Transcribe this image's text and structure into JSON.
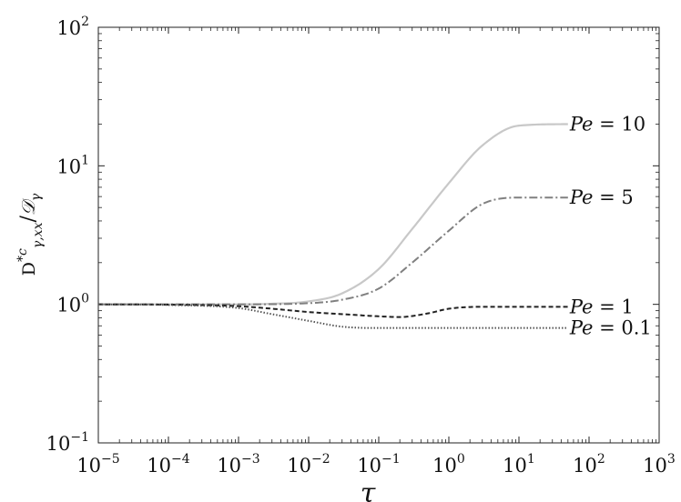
{
  "chart_data": {
    "type": "line",
    "x_scale": "log",
    "y_scale": "log",
    "xlim": [
      1e-05,
      1000
    ],
    "ylim": [
      0.1,
      100
    ],
    "xlabel": "τ",
    "ylabel": "D*c γ,xx / 𝒟γ",
    "grid": false,
    "x_ticks": [
      {
        "value": 1e-05,
        "base": "10",
        "exp": "−5"
      },
      {
        "value": 0.0001,
        "base": "10",
        "exp": "−4"
      },
      {
        "value": 0.001,
        "base": "10",
        "exp": "−3"
      },
      {
        "value": 0.01,
        "base": "10",
        "exp": "−2"
      },
      {
        "value": 0.1,
        "base": "10",
        "exp": "−1"
      },
      {
        "value": 1,
        "base": "10",
        "exp": "0"
      },
      {
        "value": 10,
        "base": "10",
        "exp": "1"
      },
      {
        "value": 100,
        "base": "10",
        "exp": "2"
      },
      {
        "value": 1000,
        "base": "10",
        "exp": "3"
      }
    ],
    "y_ticks": [
      {
        "value": 0.1,
        "base": "10",
        "exp": "−1"
      },
      {
        "value": 1,
        "base": "10",
        "exp": "0"
      },
      {
        "value": 10,
        "base": "10",
        "exp": "1"
      },
      {
        "value": 100,
        "base": "10",
        "exp": "2"
      }
    ],
    "series": [
      {
        "name": "Pe = 10",
        "color": "#c8c8c8",
        "dash": "solid",
        "points": [
          [
            1e-05,
            1.0
          ],
          [
            0.0001,
            1.0
          ],
          [
            0.001,
            1.0
          ],
          [
            0.003,
            1.01
          ],
          [
            0.01,
            1.05
          ],
          [
            0.03,
            1.2
          ],
          [
            0.1,
            1.8
          ],
          [
            0.3,
            3.5
          ],
          [
            1,
            7.5
          ],
          [
            3,
            14
          ],
          [
            10,
            19.5
          ],
          [
            50,
            20
          ]
        ]
      },
      {
        "name": "Pe = 5",
        "color": "#808080",
        "dash": "dashdot",
        "points": [
          [
            1e-05,
            1.0
          ],
          [
            0.0001,
            1.0
          ],
          [
            0.001,
            1.0
          ],
          [
            0.01,
            1.02
          ],
          [
            0.03,
            1.08
          ],
          [
            0.1,
            1.3
          ],
          [
            0.3,
            2.0
          ],
          [
            1,
            3.4
          ],
          [
            3,
            5.3
          ],
          [
            10,
            5.9
          ],
          [
            50,
            5.9
          ]
        ]
      },
      {
        "name": "Pe = 1",
        "color": "#222222",
        "dash": "dashed",
        "points": [
          [
            1e-05,
            1.0
          ],
          [
            0.0001,
            0.995
          ],
          [
            0.001,
            0.97
          ],
          [
            0.003,
            0.93
          ],
          [
            0.01,
            0.88
          ],
          [
            0.03,
            0.85
          ],
          [
            0.1,
            0.82
          ],
          [
            0.2,
            0.81
          ],
          [
            0.5,
            0.86
          ],
          [
            1,
            0.93
          ],
          [
            3,
            0.96
          ],
          [
            10,
            0.96
          ],
          [
            50,
            0.96
          ]
        ]
      },
      {
        "name": "Pe = 0.1",
        "color": "#555555",
        "dash": "dotted",
        "points": [
          [
            1e-05,
            1.0
          ],
          [
            0.0001,
            0.99
          ],
          [
            0.001,
            0.94
          ],
          [
            0.003,
            0.85
          ],
          [
            0.01,
            0.76
          ],
          [
            0.03,
            0.69
          ],
          [
            0.1,
            0.675
          ],
          [
            1,
            0.675
          ],
          [
            10,
            0.675
          ],
          [
            50,
            0.675
          ]
        ]
      }
    ]
  }
}
